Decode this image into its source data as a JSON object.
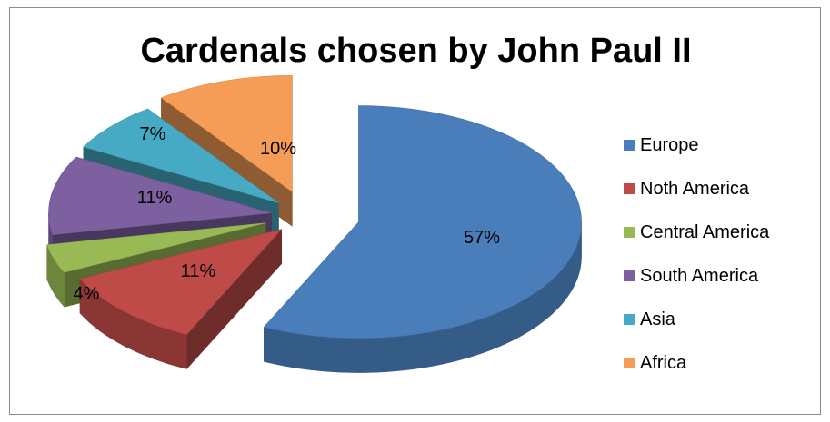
{
  "chart_data": {
    "type": "pie",
    "title": "Cardenals chosen by John Paul II",
    "categories": [
      "Europe",
      "Noth America",
      "Central America",
      "South America",
      "Asia",
      "Africa"
    ],
    "values": [
      57,
      11,
      4,
      11,
      7,
      10
    ],
    "value_labels": [
      "57%",
      "11%",
      "4%",
      "11%",
      "7%",
      "10%"
    ],
    "colors": [
      "#4a7ebb",
      "#be4b48",
      "#98b954",
      "#7d60a0",
      "#46aac5",
      "#f59d56"
    ],
    "style": "3d-exploded",
    "legend_position": "right"
  }
}
